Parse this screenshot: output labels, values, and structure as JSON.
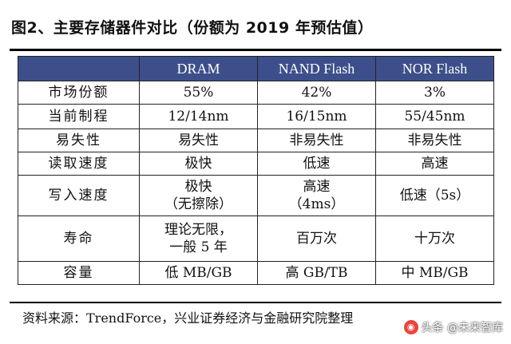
{
  "title": "图2、主要存储器件对比（份额为 2019 年预估值）",
  "table": {
    "headers": [
      "",
      "DRAM",
      "NAND Flash",
      "NOR Flash"
    ],
    "rows": [
      {
        "label": "市场份额",
        "cells": [
          "55%",
          "42%",
          "3%"
        ]
      },
      {
        "label": "当前制程",
        "cells": [
          "12/14nm",
          "16/15nm",
          "55/45nm"
        ]
      },
      {
        "label": "易失性",
        "cells": [
          "易失性",
          "非易失性",
          "非易失性"
        ]
      },
      {
        "label": "读取速度",
        "cells": [
          "极快",
          "低速",
          "高速"
        ]
      },
      {
        "label": "写入速度",
        "cells": [
          [
            "极快",
            "（无擦除）"
          ],
          [
            "高速",
            "（4ms）"
          ],
          [
            "低速（5s）"
          ]
        ]
      },
      {
        "label": "寿命",
        "cells": [
          [
            "理论无限，",
            "一般 5 年"
          ],
          [
            "百万次"
          ],
          [
            "十万次"
          ]
        ]
      },
      {
        "label": "容量",
        "cells": [
          "低 MB/GB",
          "高 GB/TB",
          "中 MB/GB"
        ]
      }
    ]
  },
  "source": "资料来源：TrendForce，兴业证券经济与金融研究院整理",
  "watermark": {
    "icon": "toutiao-logo-icon",
    "text": "头条 @未来智库"
  }
}
